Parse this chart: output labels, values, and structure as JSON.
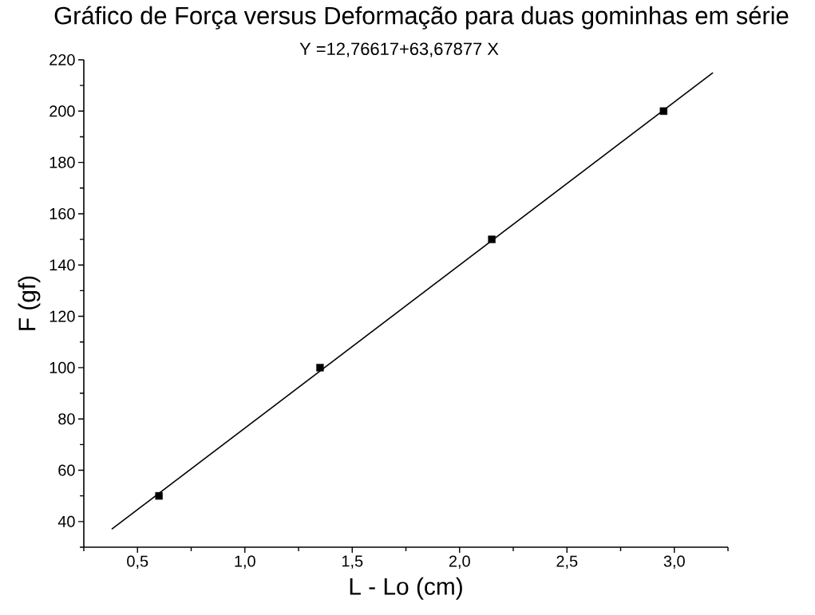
{
  "chart_data": {
    "type": "scatter",
    "title": "Gráfico de Força versus Deformação para duas gominhas em série",
    "annotations": [
      "Y =12,76617+63,67877 X"
    ],
    "xlabel": "L - Lo (cm)",
    "ylabel": "F (gf)",
    "xlim": [
      0.25,
      3.25
    ],
    "xticks": [
      {
        "value": 0.25,
        "label": null
      },
      {
        "value": 0.5,
        "label": "0,5"
      },
      {
        "value": 0.75,
        "label": null
      },
      {
        "value": 1.0,
        "label": "1,0"
      },
      {
        "value": 1.25,
        "label": null
      },
      {
        "value": 1.5,
        "label": "1,5"
      },
      {
        "value": 1.75,
        "label": null
      },
      {
        "value": 2.0,
        "label": "2,0"
      },
      {
        "value": 2.25,
        "label": null
      },
      {
        "value": 2.5,
        "label": "2,5"
      },
      {
        "value": 2.75,
        "label": null
      },
      {
        "value": 3.0,
        "label": "3,0"
      },
      {
        "value": 3.25,
        "label": null
      }
    ],
    "ylim": [
      30,
      220
    ],
    "yticks": [
      {
        "value": 30,
        "label": null
      },
      40,
      {
        "value": 50,
        "label": null
      },
      60,
      {
        "value": 70,
        "label": null
      },
      80,
      {
        "value": 90,
        "label": null
      },
      100,
      {
        "value": 110,
        "label": null
      },
      120,
      {
        "value": 130,
        "label": null
      },
      140,
      {
        "value": 150,
        "label": null
      },
      160,
      {
        "value": 170,
        "label": null
      },
      180,
      {
        "value": 190,
        "label": null
      },
      200,
      {
        "value": 210,
        "label": null
      },
      220
    ],
    "grid": false,
    "series": [
      {
        "color": "#000000",
        "marker": "square",
        "x": [
          0.6,
          1.35,
          2.15,
          2.95
        ],
        "values": [
          50,
          100,
          150,
          200
        ]
      },
      {
        "type": "line",
        "color": "#000000",
        "marker": "none",
        "line_style": "solid",
        "x": [
          0.38,
          3.18
        ],
        "values": [
          37,
          215
        ]
      }
    ]
  }
}
